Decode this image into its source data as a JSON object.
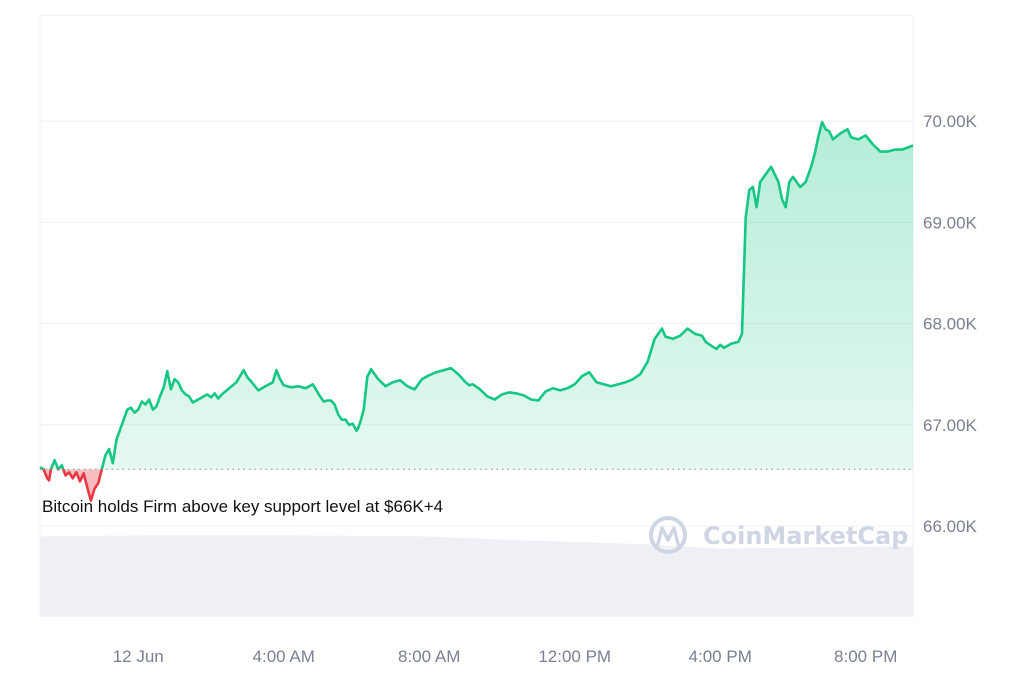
{
  "chart_data": {
    "type": "area",
    "title": "",
    "xlabel": "",
    "ylabel": "",
    "ylim": [
      65100,
      71050
    ],
    "baseline": 66560,
    "y_ticks": [
      {
        "value": 66000,
        "label": "66.00K"
      },
      {
        "value": 67000,
        "label": "67.00K"
      },
      {
        "value": 68000,
        "label": "68.00K"
      },
      {
        "value": 69000,
        "label": "69.00K"
      },
      {
        "value": 70000,
        "label": "70.00K"
      }
    ],
    "x_range_hours": [
      -2.7,
      21.3
    ],
    "x_ticks": [
      {
        "hours": 0,
        "label": "12 Jun"
      },
      {
        "hours": 4,
        "label": "4:00 AM"
      },
      {
        "hours": 8,
        "label": "8:00 AM"
      },
      {
        "hours": 12,
        "label": "12:00 PM"
      },
      {
        "hours": 16,
        "label": "4:00 PM"
      },
      {
        "hours": 20,
        "label": "8:00 PM"
      }
    ],
    "series": [
      {
        "points": [
          [
            -2.7,
            66580
          ],
          [
            -2.6,
            66560
          ],
          [
            -2.5,
            66470
          ],
          [
            -2.45,
            66450
          ],
          [
            -2.4,
            66560
          ],
          [
            -2.3,
            66650
          ],
          [
            -2.2,
            66560
          ],
          [
            -2.1,
            66600
          ],
          [
            -2.0,
            66500
          ],
          [
            -1.9,
            66530
          ],
          [
            -1.8,
            66470
          ],
          [
            -1.7,
            66530
          ],
          [
            -1.6,
            66440
          ],
          [
            -1.5,
            66520
          ],
          [
            -1.4,
            66380
          ],
          [
            -1.3,
            66250
          ],
          [
            -1.2,
            66370
          ],
          [
            -1.1,
            66420
          ],
          [
            -1.0,
            66560
          ],
          [
            -0.9,
            66700
          ],
          [
            -0.8,
            66760
          ],
          [
            -0.7,
            66620
          ],
          [
            -0.6,
            66850
          ],
          [
            -0.5,
            66950
          ],
          [
            -0.4,
            67050
          ],
          [
            -0.3,
            67150
          ],
          [
            -0.2,
            67170
          ],
          [
            -0.1,
            67120
          ],
          [
            0.0,
            67150
          ],
          [
            0.1,
            67230
          ],
          [
            0.2,
            67200
          ],
          [
            0.3,
            67250
          ],
          [
            0.4,
            67150
          ],
          [
            0.5,
            67180
          ],
          [
            0.6,
            67280
          ],
          [
            0.7,
            67370
          ],
          [
            0.8,
            67530
          ],
          [
            0.9,
            67350
          ],
          [
            1.0,
            67450
          ],
          [
            1.1,
            67420
          ],
          [
            1.2,
            67340
          ],
          [
            1.3,
            67300
          ],
          [
            1.4,
            67280
          ],
          [
            1.5,
            67220
          ],
          [
            1.6,
            67240
          ],
          [
            1.7,
            67260
          ],
          [
            1.8,
            67280
          ],
          [
            1.9,
            67300
          ],
          [
            2.0,
            67270
          ],
          [
            2.1,
            67310
          ],
          [
            2.2,
            67260
          ],
          [
            2.3,
            67300
          ],
          [
            2.5,
            67360
          ],
          [
            2.7,
            67420
          ],
          [
            2.9,
            67540
          ],
          [
            3.0,
            67470
          ],
          [
            3.1,
            67430
          ],
          [
            3.3,
            67340
          ],
          [
            3.5,
            67380
          ],
          [
            3.7,
            67420
          ],
          [
            3.8,
            67540
          ],
          [
            3.9,
            67450
          ],
          [
            4.0,
            67390
          ],
          [
            4.2,
            67370
          ],
          [
            4.4,
            67380
          ],
          [
            4.6,
            67360
          ],
          [
            4.8,
            67400
          ],
          [
            5.0,
            67280
          ],
          [
            5.1,
            67230
          ],
          [
            5.2,
            67240
          ],
          [
            5.3,
            67240
          ],
          [
            5.4,
            67200
          ],
          [
            5.5,
            67100
          ],
          [
            5.6,
            67050
          ],
          [
            5.7,
            67050
          ],
          [
            5.75,
            67020
          ],
          [
            5.8,
            67000
          ],
          [
            5.9,
            67010
          ],
          [
            6.0,
            66940
          ],
          [
            6.05,
            66970
          ],
          [
            6.1,
            67020
          ],
          [
            6.2,
            67150
          ],
          [
            6.3,
            67480
          ],
          [
            6.35,
            67510
          ],
          [
            6.4,
            67550
          ],
          [
            6.6,
            67450
          ],
          [
            6.8,
            67380
          ],
          [
            7.0,
            67420
          ],
          [
            7.2,
            67440
          ],
          [
            7.4,
            67380
          ],
          [
            7.6,
            67350
          ],
          [
            7.8,
            67450
          ],
          [
            8.0,
            67490
          ],
          [
            8.2,
            67520
          ],
          [
            8.4,
            67540
          ],
          [
            8.6,
            67560
          ],
          [
            8.8,
            67500
          ],
          [
            9.0,
            67420
          ],
          [
            9.1,
            67390
          ],
          [
            9.2,
            67400
          ],
          [
            9.4,
            67350
          ],
          [
            9.6,
            67280
          ],
          [
            9.8,
            67250
          ],
          [
            10.0,
            67300
          ],
          [
            10.2,
            67320
          ],
          [
            10.4,
            67310
          ],
          [
            10.6,
            67290
          ],
          [
            10.8,
            67250
          ],
          [
            11.0,
            67240
          ],
          [
            11.2,
            67330
          ],
          [
            11.4,
            67360
          ],
          [
            11.6,
            67340
          ],
          [
            11.8,
            67360
          ],
          [
            12.0,
            67400
          ],
          [
            12.2,
            67480
          ],
          [
            12.4,
            67520
          ],
          [
            12.6,
            67420
          ],
          [
            12.8,
            67400
          ],
          [
            13.0,
            67380
          ],
          [
            13.2,
            67400
          ],
          [
            13.4,
            67420
          ],
          [
            13.6,
            67450
          ],
          [
            13.8,
            67500
          ],
          [
            14.0,
            67620
          ],
          [
            14.2,
            67850
          ],
          [
            14.4,
            67950
          ],
          [
            14.5,
            67870
          ],
          [
            14.7,
            67850
          ],
          [
            14.9,
            67880
          ],
          [
            15.1,
            67950
          ],
          [
            15.3,
            67900
          ],
          [
            15.5,
            67880
          ],
          [
            15.6,
            67820
          ],
          [
            15.8,
            67770
          ],
          [
            15.9,
            67750
          ],
          [
            16.0,
            67790
          ],
          [
            16.1,
            67760
          ],
          [
            16.3,
            67800
          ],
          [
            16.5,
            67820
          ],
          [
            16.6,
            67900
          ],
          [
            16.7,
            69050
          ],
          [
            16.8,
            69320
          ],
          [
            16.9,
            69350
          ],
          [
            17.0,
            69150
          ],
          [
            17.1,
            69400
          ],
          [
            17.2,
            69450
          ],
          [
            17.3,
            69500
          ],
          [
            17.4,
            69550
          ],
          [
            17.6,
            69400
          ],
          [
            17.7,
            69230
          ],
          [
            17.8,
            69150
          ],
          [
            17.9,
            69400
          ],
          [
            18.0,
            69450
          ],
          [
            18.2,
            69350
          ],
          [
            18.35,
            69400
          ],
          [
            18.5,
            69550
          ],
          [
            18.6,
            69680
          ],
          [
            18.7,
            69850
          ],
          [
            18.8,
            69990
          ],
          [
            18.9,
            69920
          ],
          [
            19.0,
            69900
          ],
          [
            19.1,
            69820
          ],
          [
            19.3,
            69880
          ],
          [
            19.5,
            69920
          ],
          [
            19.6,
            69840
          ],
          [
            19.8,
            69820
          ],
          [
            20.0,
            69860
          ],
          [
            20.2,
            69770
          ],
          [
            20.4,
            69700
          ],
          [
            20.6,
            69700
          ],
          [
            20.8,
            69720
          ],
          [
            21.0,
            69720
          ],
          [
            21.3,
            69760
          ]
        ]
      }
    ],
    "volume": [
      [
        -2.7,
        0.72
      ],
      [
        0.5,
        0.73
      ],
      [
        4.0,
        0.73
      ],
      [
        8.0,
        0.72
      ],
      [
        10.0,
        0.69
      ],
      [
        14.0,
        0.65
      ],
      [
        16.0,
        0.61
      ],
      [
        18.0,
        0.62
      ],
      [
        20.0,
        0.63
      ],
      [
        21.3,
        0.63
      ]
    ],
    "annotation": "Bitcoin holds Firm above key support level at $66K+4",
    "watermark": "CoinMarketCap",
    "colors": {
      "up": "#16c784",
      "down": "#ea3943",
      "up_fill": "#16c784",
      "down_fill": "#ea3943",
      "grid": "#eef0f3",
      "baseline": "#9aa0a6",
      "axis_text": "#7a8090",
      "volume": "#eef0f5"
    }
  }
}
